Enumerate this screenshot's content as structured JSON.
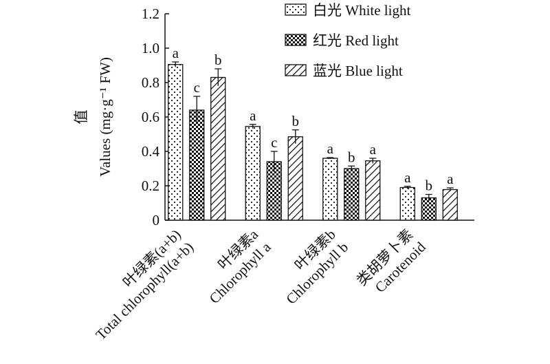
{
  "chart_data": {
    "type": "bar",
    "y_label_zh": "值",
    "y_label": "Values (mg·g⁻¹ FW)",
    "categories_zh": [
      "叶绿素(a+b)",
      "叶绿素a",
      "叶绿素b",
      "类胡萝卜素"
    ],
    "categories": [
      "Total chlorophyll(a+b)",
      "Chlorophyll a",
      "Chlorophyll b",
      "Carotenoid"
    ],
    "series": [
      {
        "name": "白光 White light",
        "pattern": "dots",
        "values": [
          0.905,
          0.545,
          0.36,
          0.19
        ],
        "errors": [
          0.015,
          0.012,
          0.004,
          0.007
        ],
        "labels": [
          "a",
          "a",
          "a",
          "a"
        ]
      },
      {
        "name": "红光 Red light",
        "pattern": "checker",
        "values": [
          0.64,
          0.34,
          0.3,
          0.13
        ],
        "errors": [
          0.08,
          0.06,
          0.015,
          0.02
        ],
        "labels": [
          "c",
          "c",
          "b",
          "b"
        ]
      },
      {
        "name": "蓝光 Blue light",
        "pattern": "hatch",
        "values": [
          0.83,
          0.485,
          0.345,
          0.178
        ],
        "errors": [
          0.05,
          0.04,
          0.015,
          0.01
        ],
        "labels": [
          "b",
          "b",
          "a",
          "a"
        ]
      }
    ],
    "ylim": [
      0,
      1.2
    ],
    "yticks": [
      0,
      0.2,
      0.4,
      0.6,
      0.8,
      {
        "value": 1,
        "label": "1.0"
      },
      1.2
    ],
    "legend": "top-right"
  }
}
